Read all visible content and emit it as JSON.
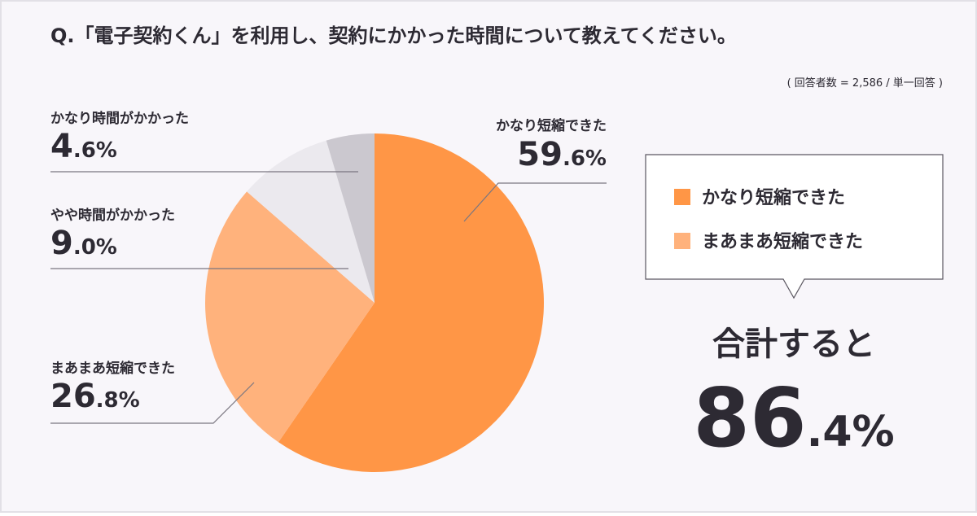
{
  "chart_data": {
    "type": "pie",
    "title": "Q.「電子契約くん」を利用し、契約にかかった時間について教えてください。",
    "subtitle": "( 回答者数 = 2,586 / 単一回答 )",
    "categories": [
      "かなり短縮できた",
      "まあまあ短縮できた",
      "やや時間がかかった",
      "かなり時間がかかった"
    ],
    "values": [
      59.6,
      26.8,
      9.0,
      4.6
    ],
    "value_labels": [
      "59.6%",
      "26.8%",
      "9.0%",
      "4.6%"
    ],
    "colors": [
      "#ff9646",
      "#ffb27c",
      "#ebe9ee",
      "#cbc8cf"
    ],
    "summary_text": "合計すると",
    "summary_value": "86.4%"
  }
}
